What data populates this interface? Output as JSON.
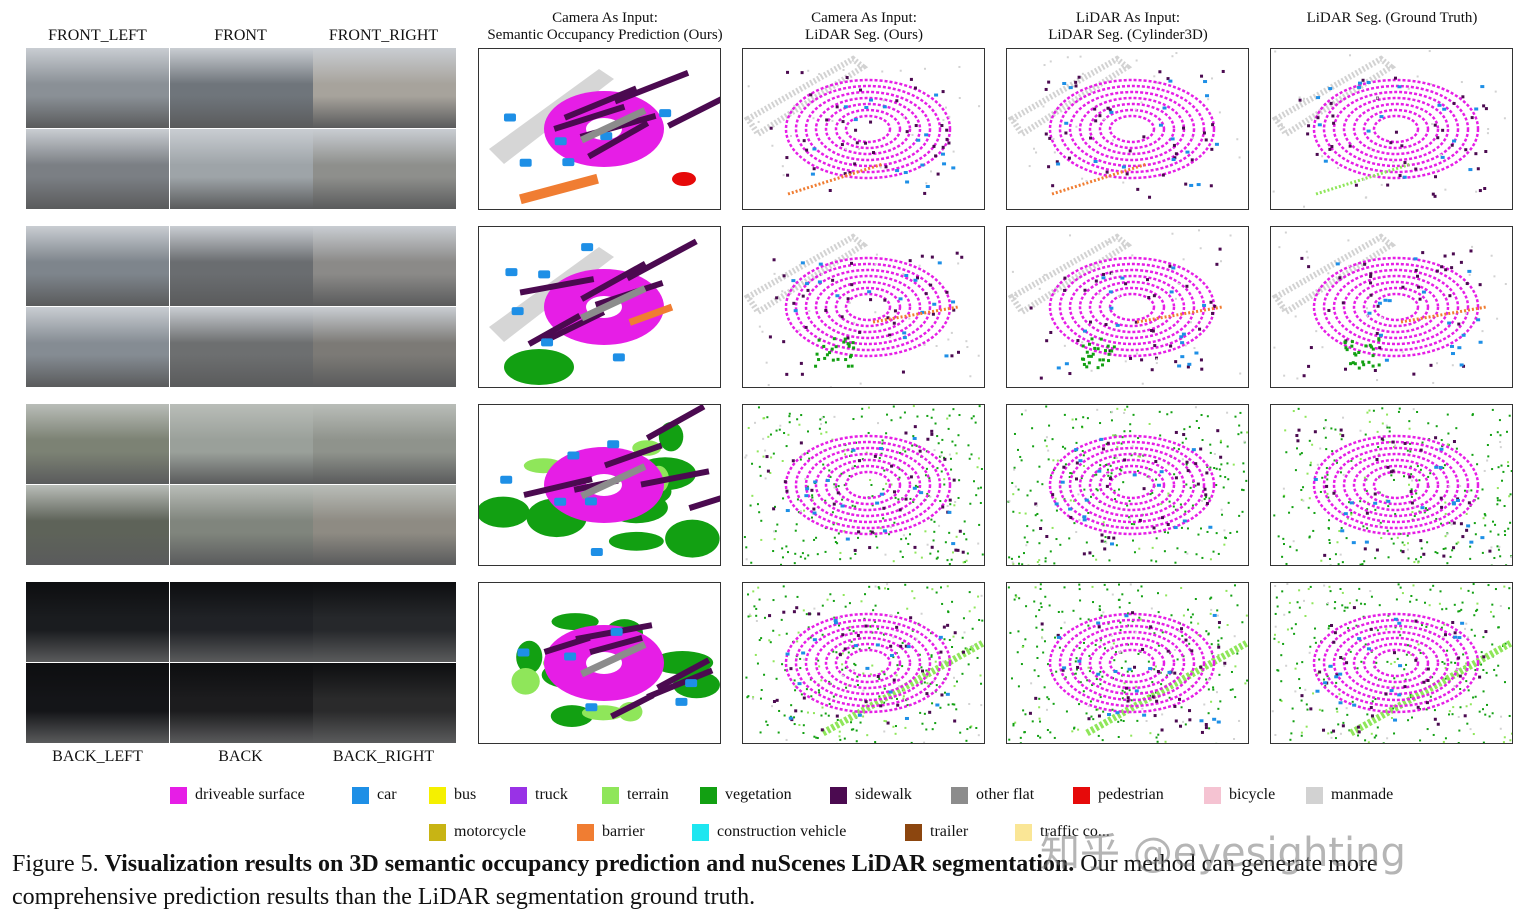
{
  "camera_labels_top": [
    "FRONT_LEFT",
    "FRONT",
    "FRONT_RIGHT"
  ],
  "camera_labels_bottom": [
    "BACK_LEFT",
    "BACK",
    "BACK_RIGHT"
  ],
  "column_headers": [
    {
      "line1": "Camera As Input:",
      "line2": "Semantic Occupancy Prediction (Ours)"
    },
    {
      "line1": "Camera As Input:",
      "line2": "LiDAR Seg. (Ours)"
    },
    {
      "line1": "LiDAR As Input:",
      "line2": "LiDAR Seg. (Cylinder3D)"
    },
    {
      "line1": "",
      "line2": "LiDAR Seg. (Ground Truth)"
    }
  ],
  "scenes": [
    {
      "tone": "day",
      "cam_colors": [
        "#8a9096",
        "#6f757b",
        "#a7a39c",
        "#7b7f84",
        "#9ea4a8",
        "#8e8f8c"
      ]
    },
    {
      "tone": "day2",
      "cam_colors": [
        "#7e858c",
        "#6a6d70",
        "#8b8a88",
        "#858c93",
        "#6d6f70",
        "#7c7a76"
      ]
    },
    {
      "tone": "park",
      "cam_colors": [
        "#7c8274",
        "#9aa09a",
        "#8f938c",
        "#5e6359",
        "#80857d",
        "#8e8b83"
      ]
    },
    {
      "tone": "night",
      "cam_colors": [
        "#1a1c1f",
        "#202226",
        "#26282b",
        "#141518",
        "#1c1c1e",
        "#2a2a2b"
      ]
    }
  ],
  "legend": [
    {
      "label": "driveable surface",
      "color": "#e61ee6"
    },
    {
      "label": "car",
      "color": "#1e8fe6"
    },
    {
      "label": "bus",
      "color": "#f5f000"
    },
    {
      "label": "truck",
      "color": "#9932e6"
    },
    {
      "label": "terrain",
      "color": "#8fe65a"
    },
    {
      "label": "vegetation",
      "color": "#12a012"
    },
    {
      "label": "sidewalk",
      "color": "#4b0a50"
    },
    {
      "label": "other flat",
      "color": "#8c8c8c"
    },
    {
      "label": "pedestrian",
      "color": "#e60a0a"
    },
    {
      "label": "bicycle",
      "color": "#f5c3d2"
    },
    {
      "label": "manmade",
      "color": "#d2d2d2"
    },
    {
      "label": "motorcycle",
      "color": "#c8b414"
    },
    {
      "label": "barrier",
      "color": "#f07d32"
    },
    {
      "label": "construction vehicle",
      "color": "#1ee6f0"
    },
    {
      "label": "trailer",
      "color": "#8c460f"
    },
    {
      "label": "traffic co...",
      "color": "#fae696"
    }
  ],
  "caption": {
    "label": "Figure 5.",
    "bold": "Visualization results on 3D semantic occupancy prediction and nuScenes LiDAR segmentation.",
    "rest": "Our method can generate more comprehensive prediction results than the LiDAR segmentation ground truth."
  },
  "watermark": "知乎 @eyesighting"
}
